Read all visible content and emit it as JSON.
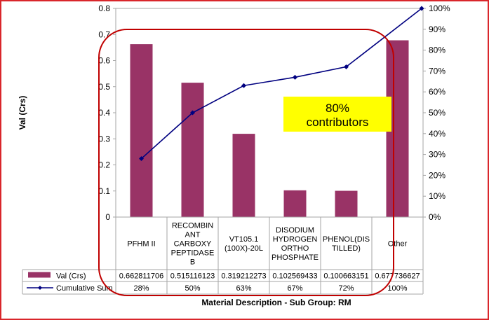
{
  "chart_data": {
    "type": "bar+line (pareto)",
    "y_left": {
      "label": "Val (Crs)",
      "ylim": [
        0,
        0.8
      ],
      "ticks": [
        "0",
        "0.1",
        "0.2",
        "0.3",
        "0.4",
        "0.5",
        "0.6",
        "0.7",
        "0.8"
      ]
    },
    "y_right": {
      "ylim": [
        0,
        100
      ],
      "ticks": [
        "0%",
        "10%",
        "20%",
        "30%",
        "40%",
        "50%",
        "60%",
        "70%",
        "80%",
        "90%",
        "100%"
      ]
    },
    "xlabel": "Material Description - Sub Group: RM",
    "categories": [
      [
        "PFHM II"
      ],
      [
        "RECOMBIN",
        "ANT",
        "CARBOXY",
        "PEPTIDASE",
        "B"
      ],
      [
        "VT105.1",
        "(100X)-20L"
      ],
      [
        "DISODIUM",
        "HYDROGEN",
        "ORTHO",
        "PHOSPHATE"
      ],
      [
        "PHENOL(DIS",
        "TILLED)"
      ],
      [
        "Other"
      ]
    ],
    "series": [
      {
        "name": "Val (Crs)",
        "type": "bar",
        "axis": "left",
        "color": "#993366",
        "values": [
          0.662811706,
          0.515116123,
          0.319212273,
          0.102569433,
          0.100663151,
          0.677736627
        ],
        "table_labels": [
          "0.662811706",
          "0.515116123",
          "0.319212273",
          "0.102569433",
          "0.100663151",
          "0.677736627"
        ]
      },
      {
        "name": "Cumulative Sum",
        "type": "line",
        "axis": "right",
        "color": "#000080",
        "values": [
          28,
          50,
          63,
          67,
          72,
          100
        ],
        "table_labels": [
          "28%",
          "50%",
          "63%",
          "67%",
          "72%",
          "100%"
        ]
      }
    ],
    "annotation": {
      "text_lines": [
        "80%",
        "contributors"
      ],
      "background": "#ffff00",
      "outline_color": "#c00000"
    },
    "grid": false,
    "frame_color": "#d9262b"
  }
}
